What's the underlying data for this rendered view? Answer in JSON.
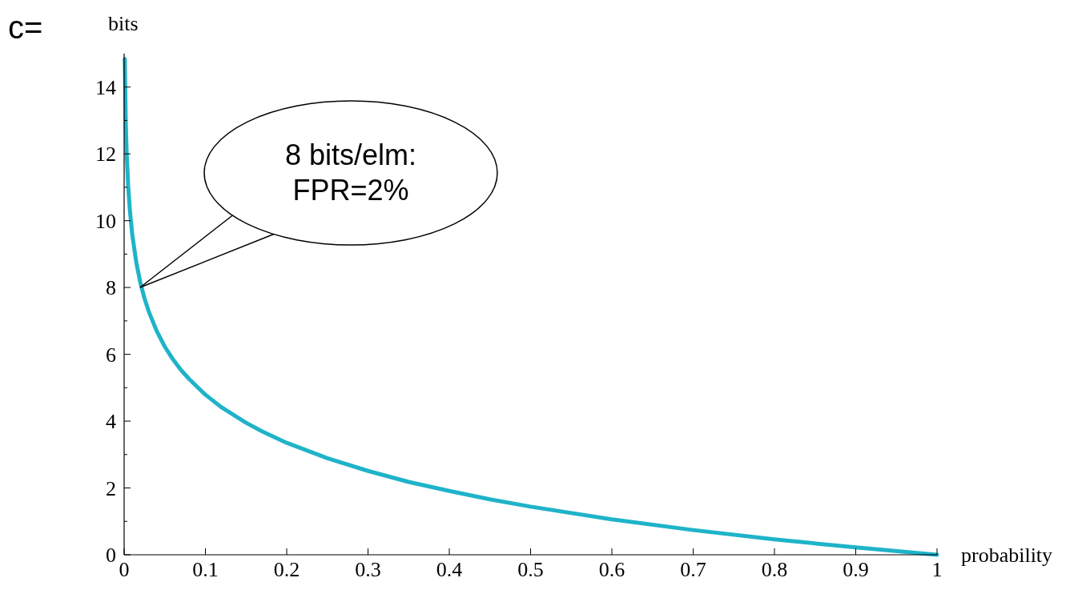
{
  "chart_data": {
    "type": "line",
    "title": "c=",
    "xlabel": "probability",
    "ylabel": "bits",
    "x": [
      0.0008,
      0.002,
      0.003,
      0.005,
      0.007,
      0.01,
      0.015,
      0.02,
      0.025,
      0.03,
      0.04,
      0.05,
      0.06,
      0.07,
      0.08,
      0.1,
      0.12,
      0.15,
      0.17,
      0.2,
      0.25,
      0.3,
      0.35,
      0.4,
      0.45,
      0.5,
      0.6,
      0.7,
      0.8,
      0.9,
      1
    ],
    "series": [
      {
        "color": "#1fb3c9",
        "values": [
          14.84,
          12.93,
          12.09,
          11.03,
          10.33,
          9.58,
          8.74,
          8.14,
          7.68,
          7.3,
          6.7,
          6.23,
          5.85,
          5.53,
          5.26,
          4.79,
          4.41,
          3.95,
          3.69,
          3.35,
          2.89,
          2.51,
          2.18,
          1.91,
          1.66,
          1.44,
          1.06,
          0.74,
          0.46,
          0.22,
          0
        ]
      }
    ],
    "xlim": [
      0,
      1
    ],
    "ylim": [
      0,
      15
    ],
    "xticks": [
      0,
      0.1,
      0.2,
      0.3,
      0.4,
      0.5,
      0.6,
      0.7,
      0.8,
      0.9,
      1
    ],
    "yticks": [
      0,
      {
        "value": 1,
        "label": null
      },
      2,
      {
        "value": 3,
        "label": null
      },
      4,
      {
        "value": 5,
        "label": null
      },
      6,
      {
        "value": 7,
        "label": null
      },
      8,
      {
        "value": 9,
        "label": null
      },
      10,
      {
        "value": 11,
        "label": null
      },
      12,
      {
        "value": 13,
        "label": null
      },
      14
    ],
    "annotations": [
      "8 bits/elm:\nFPR=2%"
    ],
    "grid": false,
    "marker": "none",
    "line_style": "solid"
  }
}
